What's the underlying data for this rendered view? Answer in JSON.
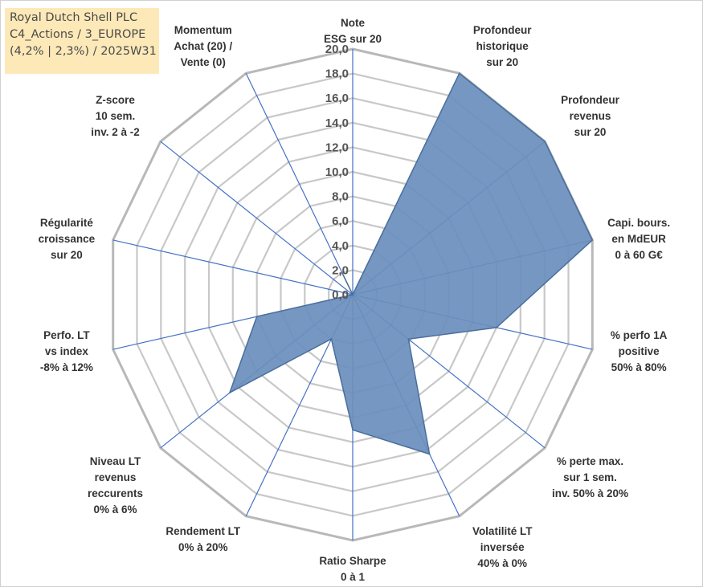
{
  "title_box": {
    "line1": "Royal Dutch Shell PLC",
    "line2": "C4_Actions / 3_EUROPE",
    "line3": "(4,2% | 2,3%) / 2025W31"
  },
  "chart_data": {
    "type": "radar",
    "rmin": 0,
    "rmax": 20,
    "tick_step": 2,
    "tick_labels": [
      "0,0",
      "2,0",
      "4,0",
      "6,0",
      "8,0",
      "10,0",
      "12,0",
      "14,0",
      "16,0",
      "18,0",
      "20,0"
    ],
    "axes": [
      {
        "label": [
          "Note",
          "ESG sur 20"
        ],
        "value": 0
      },
      {
        "label": [
          "Profondeur",
          "historique",
          "sur 20"
        ],
        "value": 20
      },
      {
        "label": [
          "Profondeur",
          "revenus",
          "sur 20"
        ],
        "value": 20
      },
      {
        "label": [
          "Capi. bours.",
          "en MdEUR",
          "0 à 60 G€"
        ],
        "value": 20
      },
      {
        "label": [
          "% perfo 1A",
          "positive",
          "50% à 80%"
        ],
        "value": 12
      },
      {
        "label": [
          "% perte max.",
          "sur 1 sem.",
          "inv. 50% à 20%"
        ],
        "value": 5.8
      },
      {
        "label": [
          "Volatilité LT",
          "inversée",
          "40% à 0%"
        ],
        "value": 14.4
      },
      {
        "label": [
          "Ratio Sharpe",
          "0 à 1"
        ],
        "value": 11
      },
      {
        "label": [
          "Rendement LT",
          "0% à 20%"
        ],
        "value": 4
      },
      {
        "label": [
          "Niveau LT",
          "revenus",
          "reccurents",
          "0% à 6%"
        ],
        "value": 12.8
      },
      {
        "label": [
          "Perfo. LT",
          "vs index",
          "-8% à 12%"
        ],
        "value": 8
      },
      {
        "label": [
          "Régularité",
          "croissance",
          "sur 20"
        ],
        "value": 0
      },
      {
        "label": [
          "Z-score",
          "10 sem.",
          "inv. 2 à -2"
        ],
        "value": 0
      },
      {
        "label": [
          "Momentum",
          "Achat (20) /",
          "Vente (0)"
        ],
        "value": 2
      }
    ],
    "colors": {
      "fill": "#6a8fbc",
      "stroke": "#4a6f9c",
      "spoke": "#4472c4",
      "grid": "#c8c8c8",
      "grid_outer": "#b8b8b8"
    }
  }
}
